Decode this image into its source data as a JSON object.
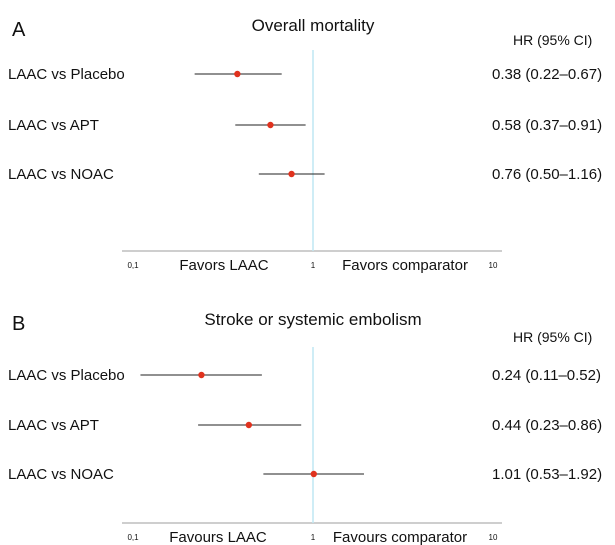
{
  "chart_data": [
    {
      "type": "forest",
      "panel": "A",
      "title": "Overall mortality",
      "hr_header": "HR (95% CI)",
      "x_scale": "log",
      "xlim": [
        0.1,
        10
      ],
      "x_ticks": [
        "0,1",
        "1",
        "10"
      ],
      "reference_line": 1,
      "favors_left": "Favors LAAC",
      "favors_right": "Favors comparator",
      "rows": [
        {
          "label": "LAAC vs Placebo",
          "hr": 0.38,
          "lo": 0.22,
          "hi": 0.67,
          "hr_text": "0.38 (0.22–0.67)"
        },
        {
          "label": "LAAC vs APT",
          "hr": 0.58,
          "lo": 0.37,
          "hi": 0.91,
          "hr_text": "0.58 (0.37–0.91)"
        },
        {
          "label": "LAAC vs NOAC",
          "hr": 0.76,
          "lo": 0.5,
          "hi": 1.16,
          "hr_text": "0.76 (0.50–1.16)"
        }
      ]
    },
    {
      "type": "forest",
      "panel": "B",
      "title": "Stroke or systemic embolism",
      "hr_header": "HR (95% CI)",
      "x_scale": "log",
      "xlim": [
        0.1,
        10
      ],
      "x_ticks": [
        "0,1",
        "1",
        "10"
      ],
      "reference_line": 1,
      "favors_left": "Favours LAAC",
      "favors_right": "Favours comparator",
      "rows": [
        {
          "label": "LAAC vs Placebo",
          "hr": 0.24,
          "lo": 0.11,
          "hi": 0.52,
          "hr_text": "0.24 (0.11–0.52)"
        },
        {
          "label": "LAAC vs APT",
          "hr": 0.44,
          "lo": 0.23,
          "hi": 0.86,
          "hr_text": "0.44 (0.23–0.86)"
        },
        {
          "label": "LAAC vs NOAC",
          "hr": 1.01,
          "lo": 0.53,
          "hi": 1.92,
          "hr_text": "1.01 (0.53–1.92)"
        }
      ]
    }
  ],
  "colors": {
    "point": "#e0321e",
    "ci_line": "#222222",
    "reference_line": "#bfe7f3",
    "axis": "#b0b0b0"
  }
}
